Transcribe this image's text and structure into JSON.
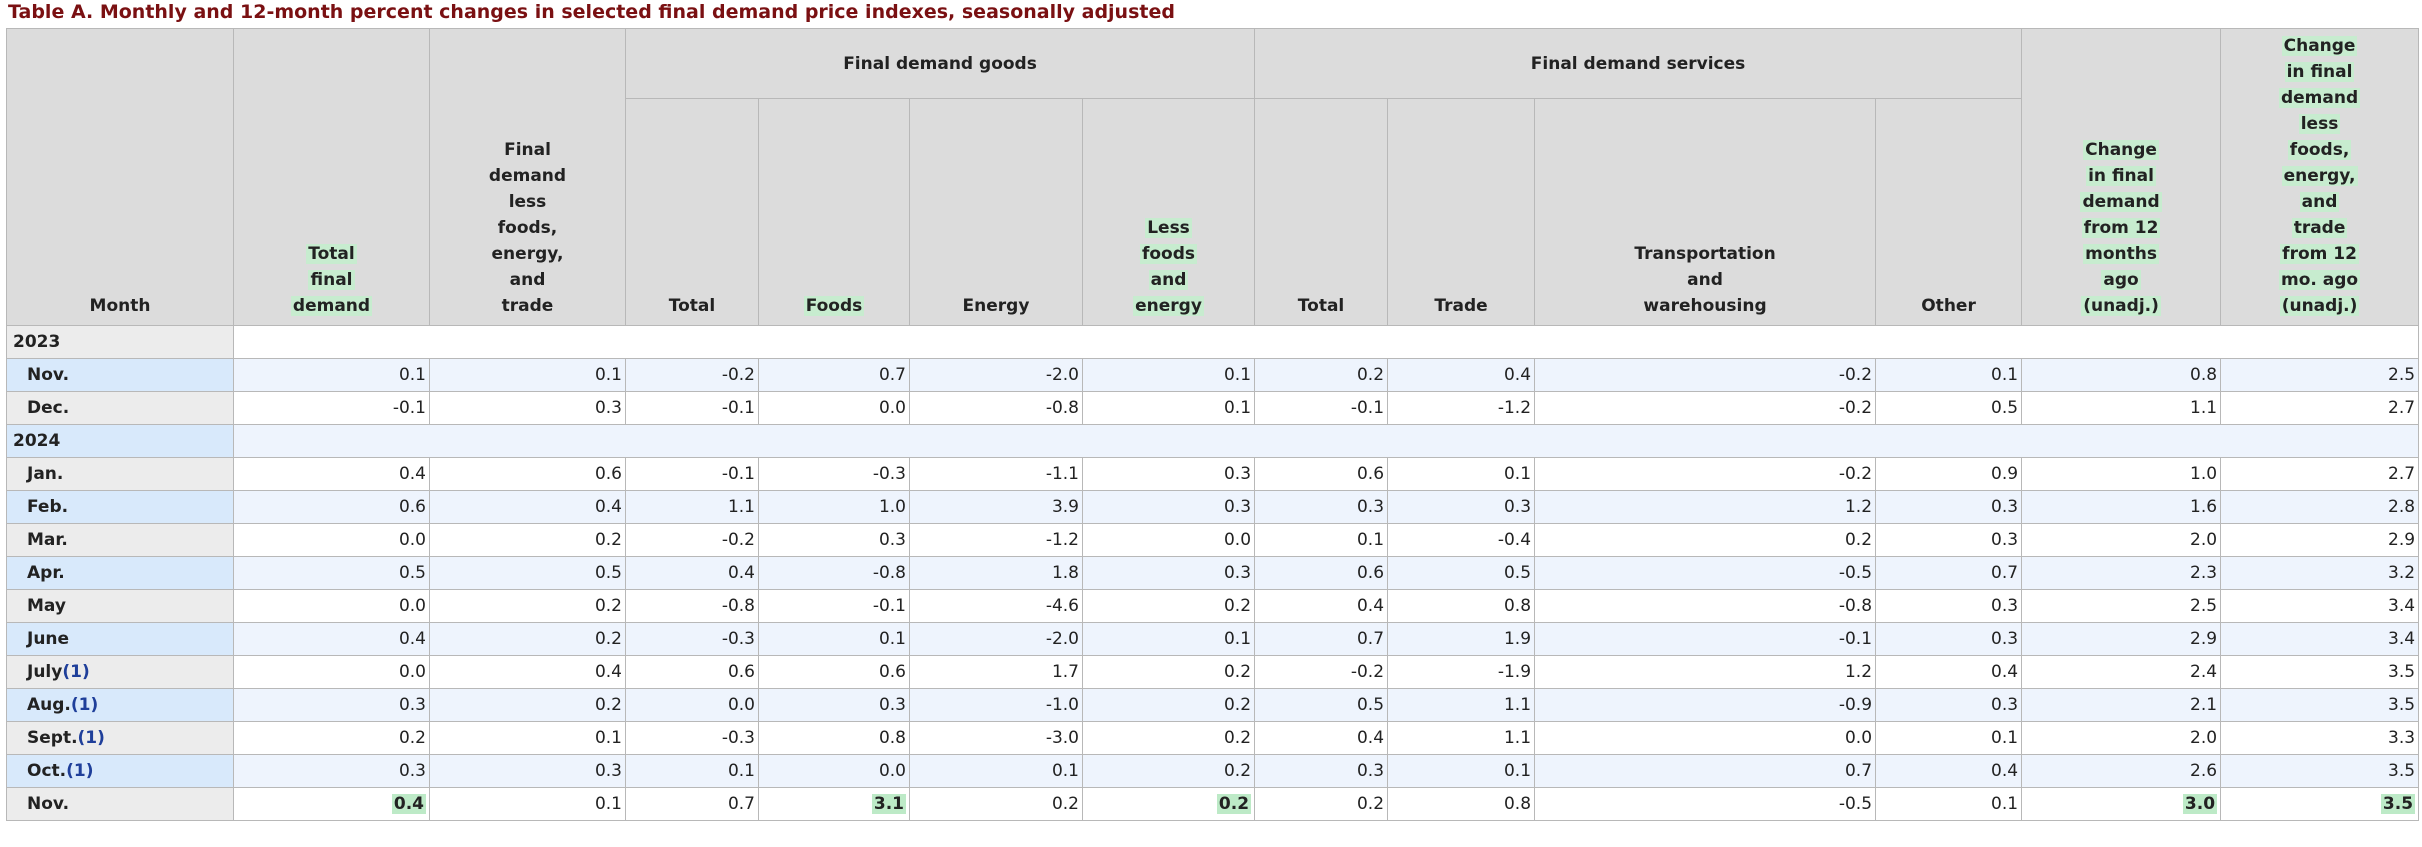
{
  "caption": "Table A. Monthly and 12-month percent changes in selected final demand price indexes, seasonally adjusted",
  "headers": {
    "month": "Month",
    "total_final_demand": [
      "Total",
      "final",
      "demand"
    ],
    "final_demand_less": [
      "Final",
      "demand",
      "less",
      "foods,",
      "energy,",
      "and",
      "trade"
    ],
    "goods_group": "Final demand goods",
    "services_group": "Final demand services",
    "goods_total": "Total",
    "goods_foods": "Foods",
    "goods_energy": "Energy",
    "goods_less": [
      "Less",
      "foods",
      "and",
      "energy"
    ],
    "services_total": "Total",
    "services_trade": "Trade",
    "services_transport": [
      "Transportation",
      "and",
      "warehousing"
    ],
    "services_other": "Other",
    "change_12": [
      "Change",
      "in final",
      "demand",
      "from 12",
      "months",
      "ago",
      "(unadj.)"
    ],
    "change_less_12": [
      "Change",
      "in final",
      "demand",
      "less",
      "foods,",
      "energy,",
      "and",
      "trade",
      "from 12",
      "mo. ago",
      "(unadj.)"
    ]
  },
  "rows": [
    {
      "type": "year",
      "label": "2023"
    },
    {
      "type": "data",
      "label": "Nov.",
      "fn": "",
      "values": [
        "0.1",
        "0.1",
        "-0.2",
        "0.7",
        "-2.0",
        "0.1",
        "0.2",
        "0.4",
        "-0.2",
        "0.1",
        "0.8",
        "2.5"
      ]
    },
    {
      "type": "data",
      "label": "Dec.",
      "fn": "",
      "values": [
        "-0.1",
        "0.3",
        "-0.1",
        "0.0",
        "-0.8",
        "0.1",
        "-0.1",
        "-1.2",
        "-0.2",
        "0.5",
        "1.1",
        "2.7"
      ]
    },
    {
      "type": "year",
      "label": "2024"
    },
    {
      "type": "data",
      "label": "Jan.",
      "fn": "",
      "values": [
        "0.4",
        "0.6",
        "-0.1",
        "-0.3",
        "-1.1",
        "0.3",
        "0.6",
        "0.1",
        "-0.2",
        "0.9",
        "1.0",
        "2.7"
      ]
    },
    {
      "type": "data",
      "label": "Feb.",
      "fn": "",
      "values": [
        "0.6",
        "0.4",
        "1.1",
        "1.0",
        "3.9",
        "0.3",
        "0.3",
        "0.3",
        "1.2",
        "0.3",
        "1.6",
        "2.8"
      ]
    },
    {
      "type": "data",
      "label": "Mar.",
      "fn": "",
      "values": [
        "0.0",
        "0.2",
        "-0.2",
        "0.3",
        "-1.2",
        "0.0",
        "0.1",
        "-0.4",
        "0.2",
        "0.3",
        "2.0",
        "2.9"
      ]
    },
    {
      "type": "data",
      "label": "Apr.",
      "fn": "",
      "values": [
        "0.5",
        "0.5",
        "0.4",
        "-0.8",
        "1.8",
        "0.3",
        "0.6",
        "0.5",
        "-0.5",
        "0.7",
        "2.3",
        "3.2"
      ]
    },
    {
      "type": "data",
      "label": "May",
      "fn": "",
      "values": [
        "0.0",
        "0.2",
        "-0.8",
        "-0.1",
        "-4.6",
        "0.2",
        "0.4",
        "0.8",
        "-0.8",
        "0.3",
        "2.5",
        "3.4"
      ]
    },
    {
      "type": "data",
      "label": "June",
      "fn": "",
      "values": [
        "0.4",
        "0.2",
        "-0.3",
        "0.1",
        "-2.0",
        "0.1",
        "0.7",
        "1.9",
        "-0.1",
        "0.3",
        "2.9",
        "3.4"
      ]
    },
    {
      "type": "data",
      "label": "July",
      "fn": "(1)",
      "values": [
        "0.0",
        "0.4",
        "0.6",
        "0.6",
        "1.7",
        "0.2",
        "-0.2",
        "-1.9",
        "1.2",
        "0.4",
        "2.4",
        "3.5"
      ]
    },
    {
      "type": "data",
      "label": "Aug.",
      "fn": "(1)",
      "values": [
        "0.3",
        "0.2",
        "0.0",
        "0.3",
        "-1.0",
        "0.2",
        "0.5",
        "1.1",
        "-0.9",
        "0.3",
        "2.1",
        "3.5"
      ]
    },
    {
      "type": "data",
      "label": "Sept.",
      "fn": "(1)",
      "values": [
        "0.2",
        "0.1",
        "-0.3",
        "0.8",
        "-3.0",
        "0.2",
        "0.4",
        "1.1",
        "0.0",
        "0.1",
        "2.0",
        "3.3"
      ]
    },
    {
      "type": "data",
      "label": "Oct.",
      "fn": "(1)",
      "values": [
        "0.3",
        "0.3",
        "0.1",
        "0.0",
        "0.1",
        "0.2",
        "0.3",
        "0.1",
        "0.7",
        "0.4",
        "2.6",
        "3.5"
      ]
    },
    {
      "type": "data",
      "label": "Nov.",
      "fn": "",
      "values": [
        "0.4",
        "0.1",
        "0.7",
        "3.1",
        "0.2",
        "0.2",
        "0.2",
        "0.8",
        "-0.5",
        "0.1",
        "3.0",
        "3.5"
      ],
      "highlight": [
        0,
        3,
        5,
        10,
        11
      ]
    }
  ]
}
